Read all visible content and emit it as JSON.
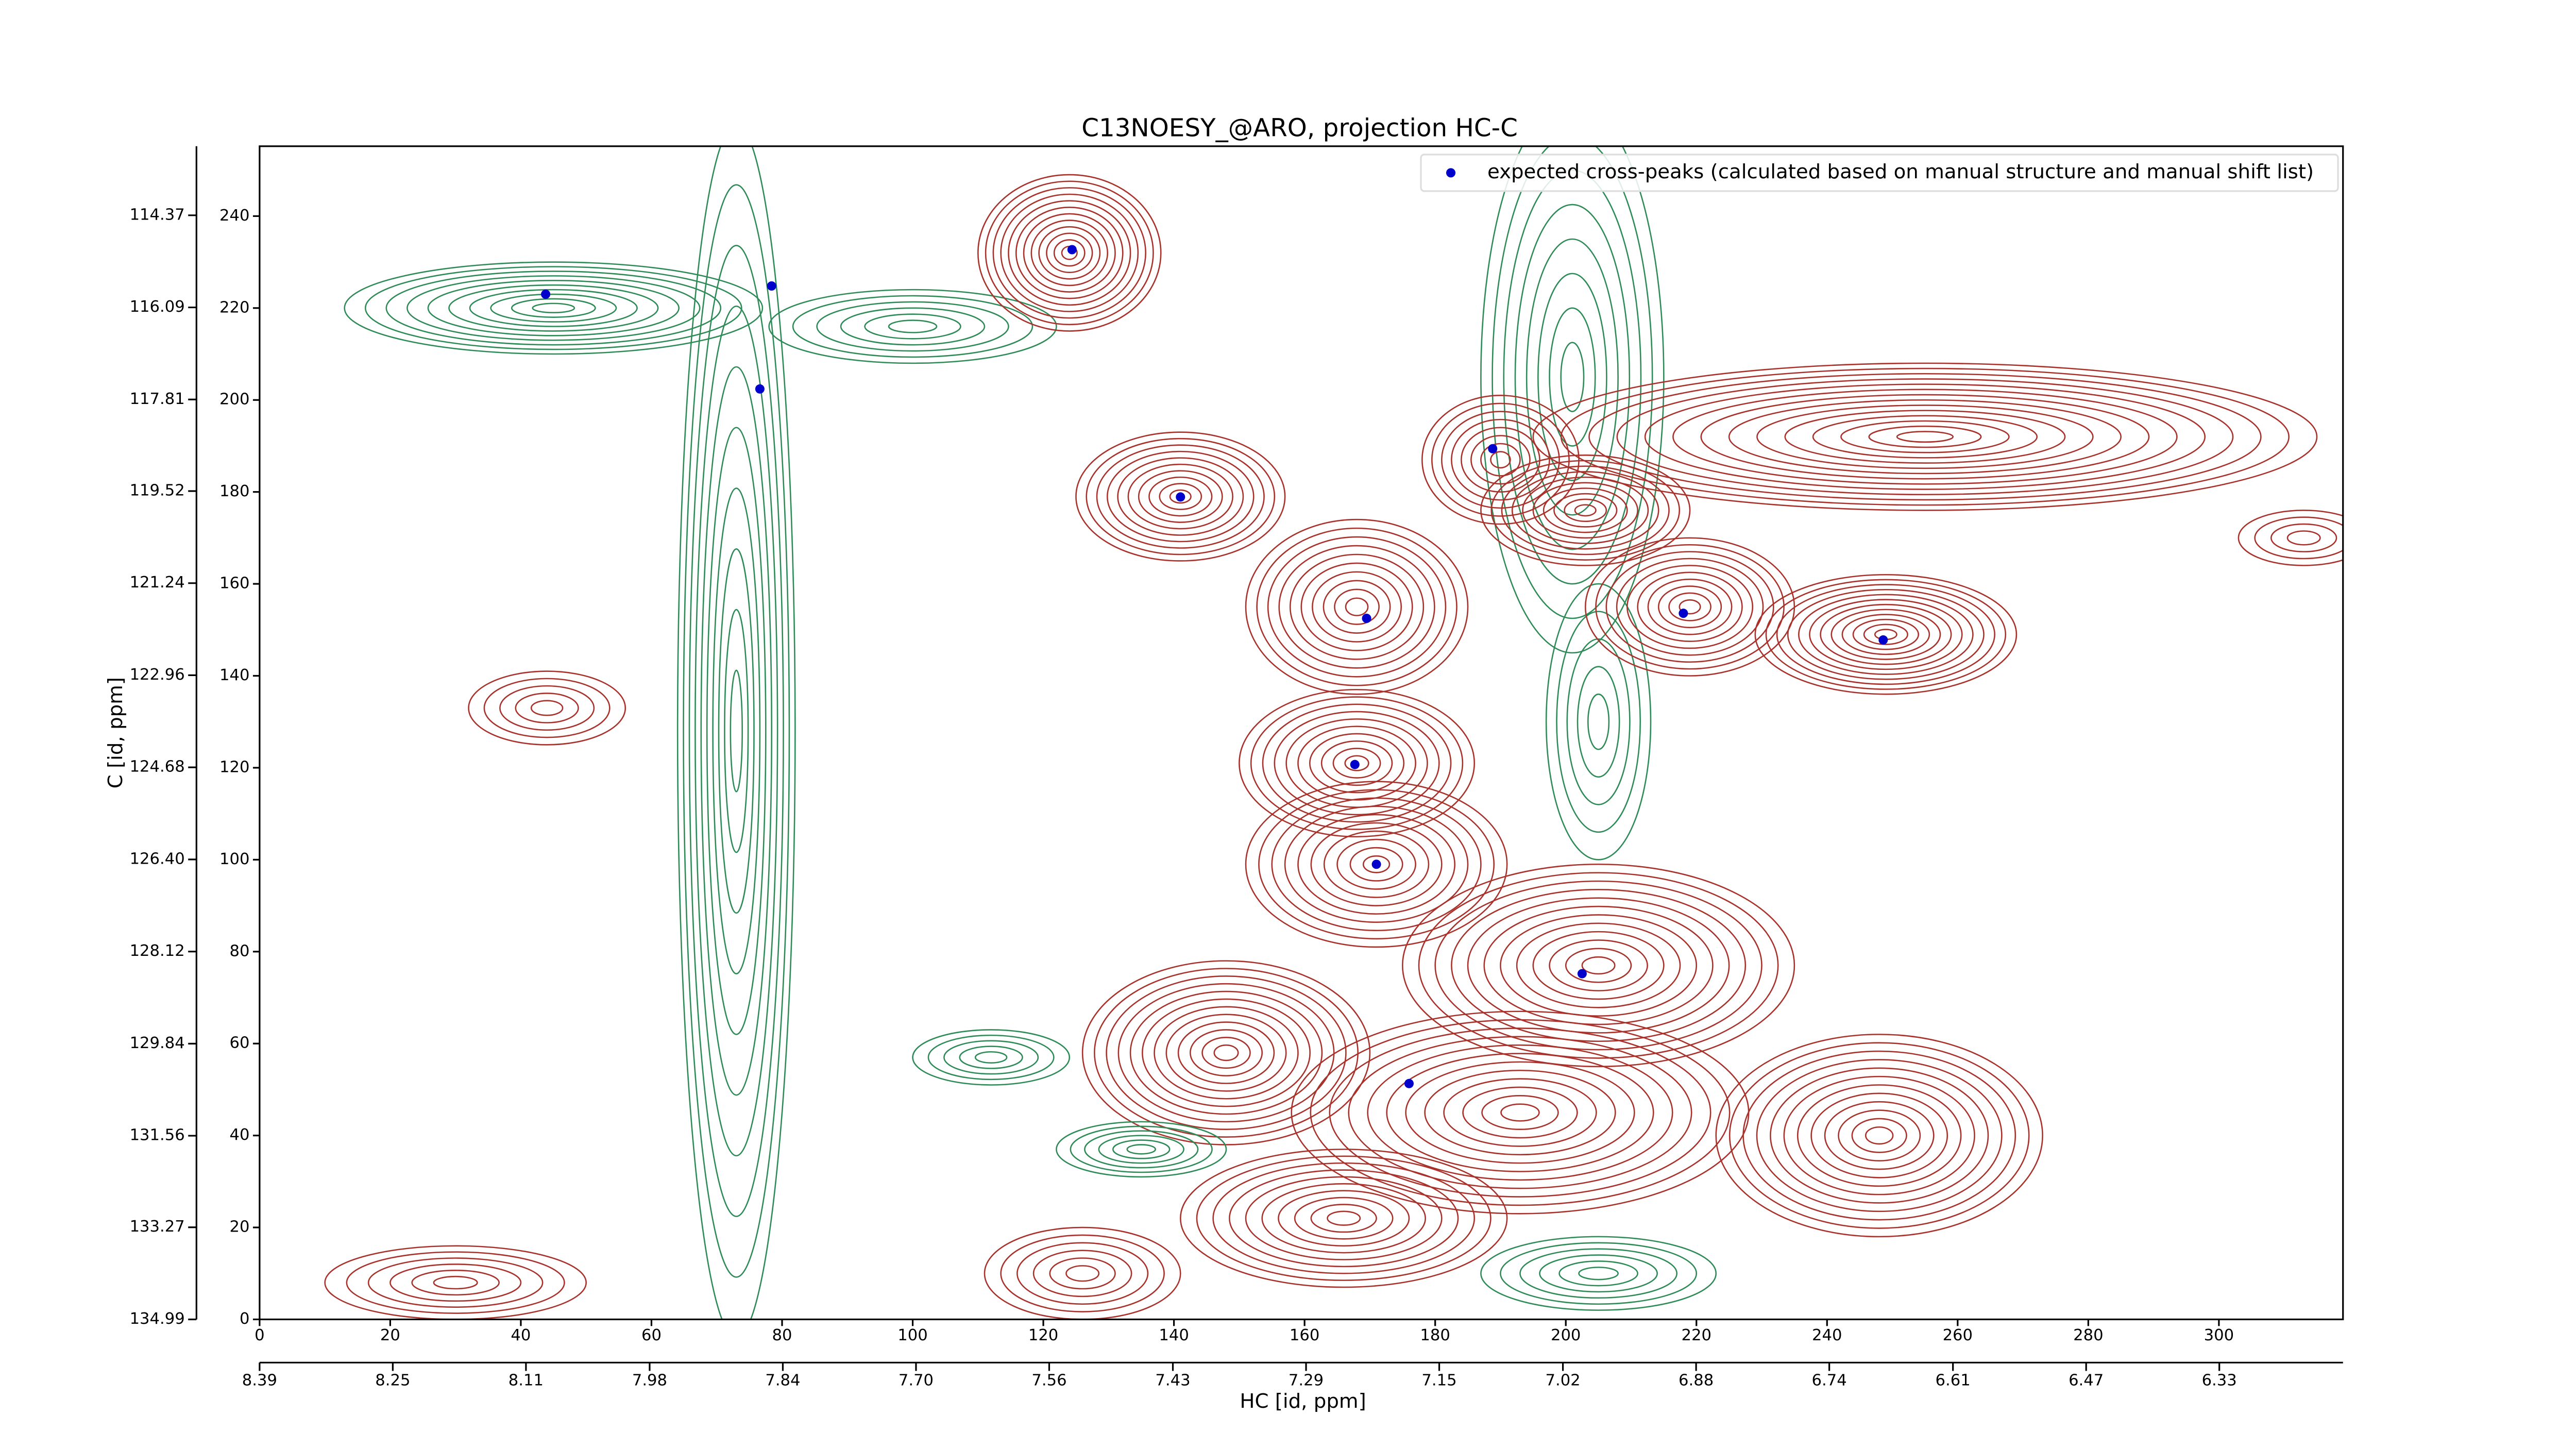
{
  "chart_data": {
    "type": "contour",
    "title": "C13NOESY_@ARO, projection HC-C",
    "xlabel": "HC [id, ppm]",
    "ylabel": "C [id, ppm]",
    "xlim": [
      0,
      319
    ],
    "ylim": [
      0,
      255.2
    ],
    "xticks": [
      0,
      20,
      40,
      60,
      80,
      100,
      120,
      140,
      160,
      180,
      200,
      220,
      240,
      260,
      280,
      300
    ],
    "yticks": [
      0,
      20,
      40,
      60,
      80,
      100,
      120,
      140,
      160,
      180,
      200,
      220,
      240
    ],
    "x2lim": [
      8.39,
      6.2
    ],
    "x2ticks": [
      8.39,
      8.25,
      8.11,
      7.98,
      7.84,
      {
        "value": 7.7,
        "label": "7.70"
      },
      7.56,
      7.43,
      7.29,
      7.15,
      7.02,
      6.88,
      6.74,
      6.61,
      6.47,
      6.33
    ],
    "y2lim": [
      134.99,
      113.08
    ],
    "y2ticks": [
      134.99,
      133.27,
      131.56,
      129.84,
      128.12,
      {
        "value": 126.4,
        "label": "126.40"
      },
      124.68,
      122.96,
      121.24,
      119.52,
      117.81,
      116.09,
      114.37
    ],
    "legend": "upper right",
    "series": [
      {
        "name": "expected cross-peaks (calculated based on manual structure and manual shift list)",
        "color": "#0000cc",
        "x": [
          43.8,
          78.4,
          76.6,
          124.4,
          141,
          188.8,
          169.5,
          218,
          248.6,
          167.7,
          171,
          202.5,
          176
        ],
        "y": [
          223,
          224.8,
          202.4,
          232.7,
          178.9,
          189.4,
          152.5,
          153.6,
          147.8,
          120.7,
          99,
          75.2,
          51.3
        ]
      }
    ],
    "contours": [
      {
        "x": 73,
        "y": 128,
        "rx": 9,
        "ry": 132,
        "rings": 10,
        "color": "#2e8b57"
      },
      {
        "x": 201,
        "y": 205,
        "rx": 14,
        "ry": 60,
        "rings": 8,
        "color": "#2e8b57"
      },
      {
        "x": 205,
        "y": 130,
        "rx": 8,
        "ry": 30,
        "rings": 5,
        "color": "#2e8b57"
      },
      {
        "x": 45,
        "y": 220,
        "rx": 32,
        "ry": 10,
        "rings": 10,
        "color": "#2e8b57"
      },
      {
        "x": 100,
        "y": 216,
        "rx": 22,
        "ry": 8,
        "rings": 6,
        "color": "#2e8b57"
      },
      {
        "x": 124,
        "y": 232,
        "rx": 14,
        "ry": 17,
        "rings": 12,
        "color": "#a8322b"
      },
      {
        "x": 141,
        "y": 179,
        "rx": 16,
        "ry": 14,
        "rings": 10,
        "color": "#a8322b"
      },
      {
        "x": 190,
        "y": 187,
        "rx": 12,
        "ry": 14,
        "rings": 8,
        "color": "#a8322b"
      },
      {
        "x": 203,
        "y": 176,
        "rx": 16,
        "ry": 12,
        "rings": 10,
        "color": "#a8322b"
      },
      {
        "x": 255,
        "y": 192,
        "rx": 60,
        "ry": 16,
        "rings": 14,
        "color": "#a8322b"
      },
      {
        "x": 168,
        "y": 155,
        "rx": 17,
        "ry": 19,
        "rings": 10,
        "color": "#a8322b"
      },
      {
        "x": 219,
        "y": 155,
        "rx": 16,
        "ry": 15,
        "rings": 10,
        "color": "#a8322b"
      },
      {
        "x": 249,
        "y": 149,
        "rx": 20,
        "ry": 13,
        "rings": 12,
        "color": "#a8322b"
      },
      {
        "x": 168,
        "y": 121,
        "rx": 18,
        "ry": 16,
        "rings": 10,
        "color": "#a8322b"
      },
      {
        "x": 171,
        "y": 99,
        "rx": 20,
        "ry": 18,
        "rings": 10,
        "color": "#a8322b"
      },
      {
        "x": 205,
        "y": 77,
        "rx": 30,
        "ry": 22,
        "rings": 12,
        "color": "#a8322b"
      },
      {
        "x": 148,
        "y": 58,
        "rx": 22,
        "ry": 20,
        "rings": 12,
        "color": "#a8322b"
      },
      {
        "x": 193,
        "y": 45,
        "rx": 35,
        "ry": 22,
        "rings": 12,
        "color": "#a8322b"
      },
      {
        "x": 248,
        "y": 40,
        "rx": 25,
        "ry": 22,
        "rings": 12,
        "color": "#a8322b"
      },
      {
        "x": 166,
        "y": 22,
        "rx": 25,
        "ry": 15,
        "rings": 10,
        "color": "#a8322b"
      },
      {
        "x": 30,
        "y": 8,
        "rx": 20,
        "ry": 8,
        "rings": 6,
        "color": "#a8322b"
      },
      {
        "x": 44,
        "y": 133,
        "rx": 12,
        "ry": 8,
        "rings": 5,
        "color": "#a8322b"
      },
      {
        "x": 126,
        "y": 10,
        "rx": 15,
        "ry": 10,
        "rings": 6,
        "color": "#a8322b"
      },
      {
        "x": 112,
        "y": 57,
        "rx": 12,
        "ry": 6,
        "rings": 5,
        "color": "#2e8b57"
      },
      {
        "x": 135,
        "y": 37,
        "rx": 13,
        "ry": 6,
        "rings": 6,
        "color": "#2e8b57"
      },
      {
        "x": 205,
        "y": 10,
        "rx": 18,
        "ry": 8,
        "rings": 6,
        "color": "#2e8b57"
      },
      {
        "x": 313,
        "y": 170,
        "rx": 10,
        "ry": 6,
        "rings": 4,
        "color": "#a8322b"
      }
    ]
  }
}
